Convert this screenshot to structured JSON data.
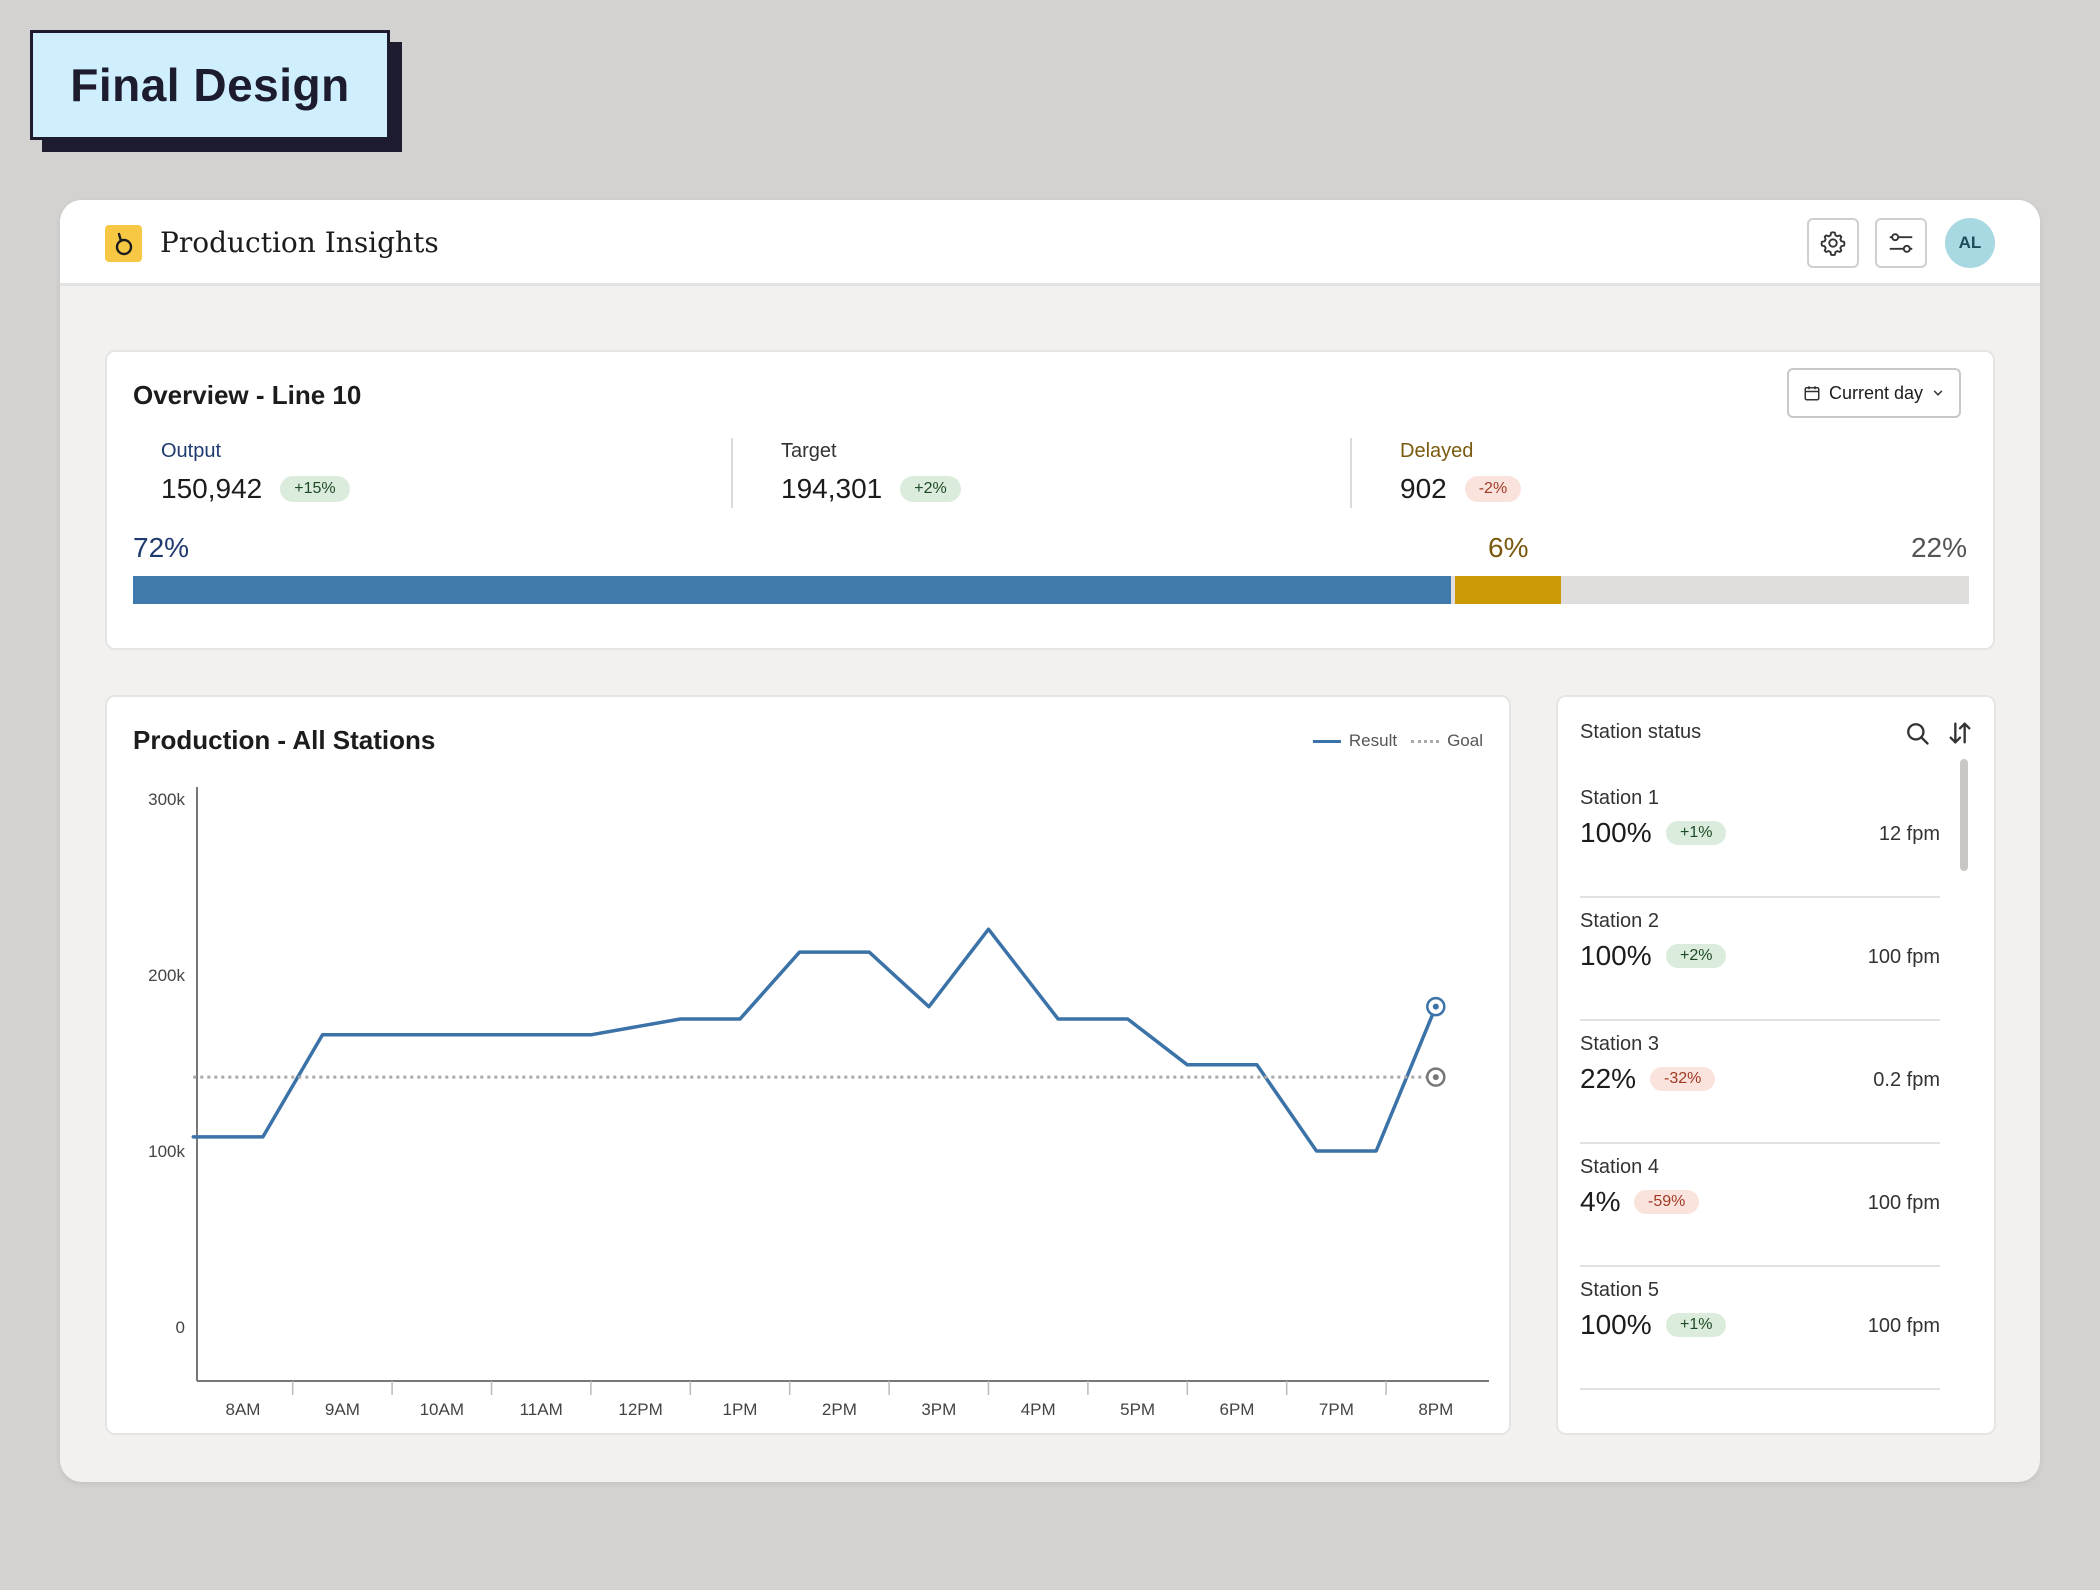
{
  "label": {
    "text": "Final Design"
  },
  "app": {
    "title": "Production Insights",
    "avatar_initials": "AL",
    "logo_color": "#f7c844",
    "icons": [
      "gear-icon",
      "sliders-icon"
    ]
  },
  "overview": {
    "title": "Overview - Line 10",
    "date_button": "Current day",
    "metrics": [
      {
        "label": "Output",
        "value": "150,942",
        "change": "+15%",
        "trend": "positive",
        "label_color": "#1e3a6e"
      },
      {
        "label": "Target",
        "value": "194,301",
        "change": "+2%",
        "trend": "positive",
        "label_color": "#333333"
      },
      {
        "label": "Delayed",
        "value": "902",
        "change": "-2%",
        "trend": "negative",
        "label_color": "#7a5a0e"
      }
    ],
    "progress": {
      "segments": [
        {
          "label": "72%",
          "value": 72,
          "color": "#4079ab",
          "text_color": "#1e3a6e"
        },
        {
          "label": "6%",
          "value": 6,
          "color": "#cc9a06",
          "text_color": "#7a5a0e"
        },
        {
          "label": "22%",
          "value": 22,
          "color": "#dfdedc",
          "text_color": "#555555"
        }
      ]
    }
  },
  "production": {
    "title": "Production - All Stations",
    "legend": {
      "result": "Result",
      "goal": "Goal"
    }
  },
  "chart_data": {
    "type": "line",
    "title": "Production - All Stations",
    "x": [
      "8AM",
      "9AM",
      "10AM",
      "11AM",
      "12PM",
      "1PM",
      "2PM",
      "3PM",
      "4PM",
      "5PM",
      "6PM",
      "7PM",
      "8PM"
    ],
    "y_ticks": [
      {
        "value": 0,
        "label": "0"
      },
      {
        "value": 100000,
        "label": "100k"
      },
      {
        "value": 200000,
        "label": "200k"
      },
      {
        "value": 300000,
        "label": "300k"
      }
    ],
    "ylim": [
      0,
      300000
    ],
    "series": [
      {
        "name": "Result",
        "color": "#3b72a7",
        "style": "solid",
        "points": [
          [
            -0.5,
            108000
          ],
          [
            0.2,
            108000
          ],
          [
            0.8,
            166000
          ],
          [
            1.5,
            166000
          ],
          [
            2.5,
            166000
          ],
          [
            3.5,
            166000
          ],
          [
            4.4,
            175000
          ],
          [
            5.0,
            175000
          ],
          [
            5.6,
            213000
          ],
          [
            6.3,
            213000
          ],
          [
            6.9,
            182000
          ],
          [
            7.5,
            226000
          ],
          [
            8.2,
            175000
          ],
          [
            8.9,
            175000
          ],
          [
            9.5,
            149000
          ],
          [
            10.2,
            149000
          ],
          [
            10.8,
            100000
          ],
          [
            11.4,
            100000
          ],
          [
            12.0,
            182000
          ]
        ]
      },
      {
        "name": "Goal",
        "color": "#a9a9a9",
        "style": "dotted",
        "points": [
          [
            -0.5,
            142000
          ],
          [
            12.0,
            142000
          ]
        ]
      }
    ],
    "grid": false,
    "legend_position": "top-right"
  },
  "stations": {
    "title": "Station status",
    "items": [
      {
        "name": "Station 1",
        "value": "100%",
        "change": "+1%",
        "trend": "positive",
        "rate": "12 fpm"
      },
      {
        "name": "Station 2",
        "value": "100%",
        "change": "+2%",
        "trend": "positive",
        "rate": "100 fpm"
      },
      {
        "name": "Station 3",
        "value": "22%",
        "change": "-32%",
        "trend": "negative",
        "rate": "0.2 fpm"
      },
      {
        "name": "Station 4",
        "value": "4%",
        "change": "-59%",
        "trend": "negative",
        "rate": "100 fpm"
      },
      {
        "name": "Station 5",
        "value": "100%",
        "change": "+1%",
        "trend": "positive",
        "rate": "100 fpm"
      }
    ]
  }
}
